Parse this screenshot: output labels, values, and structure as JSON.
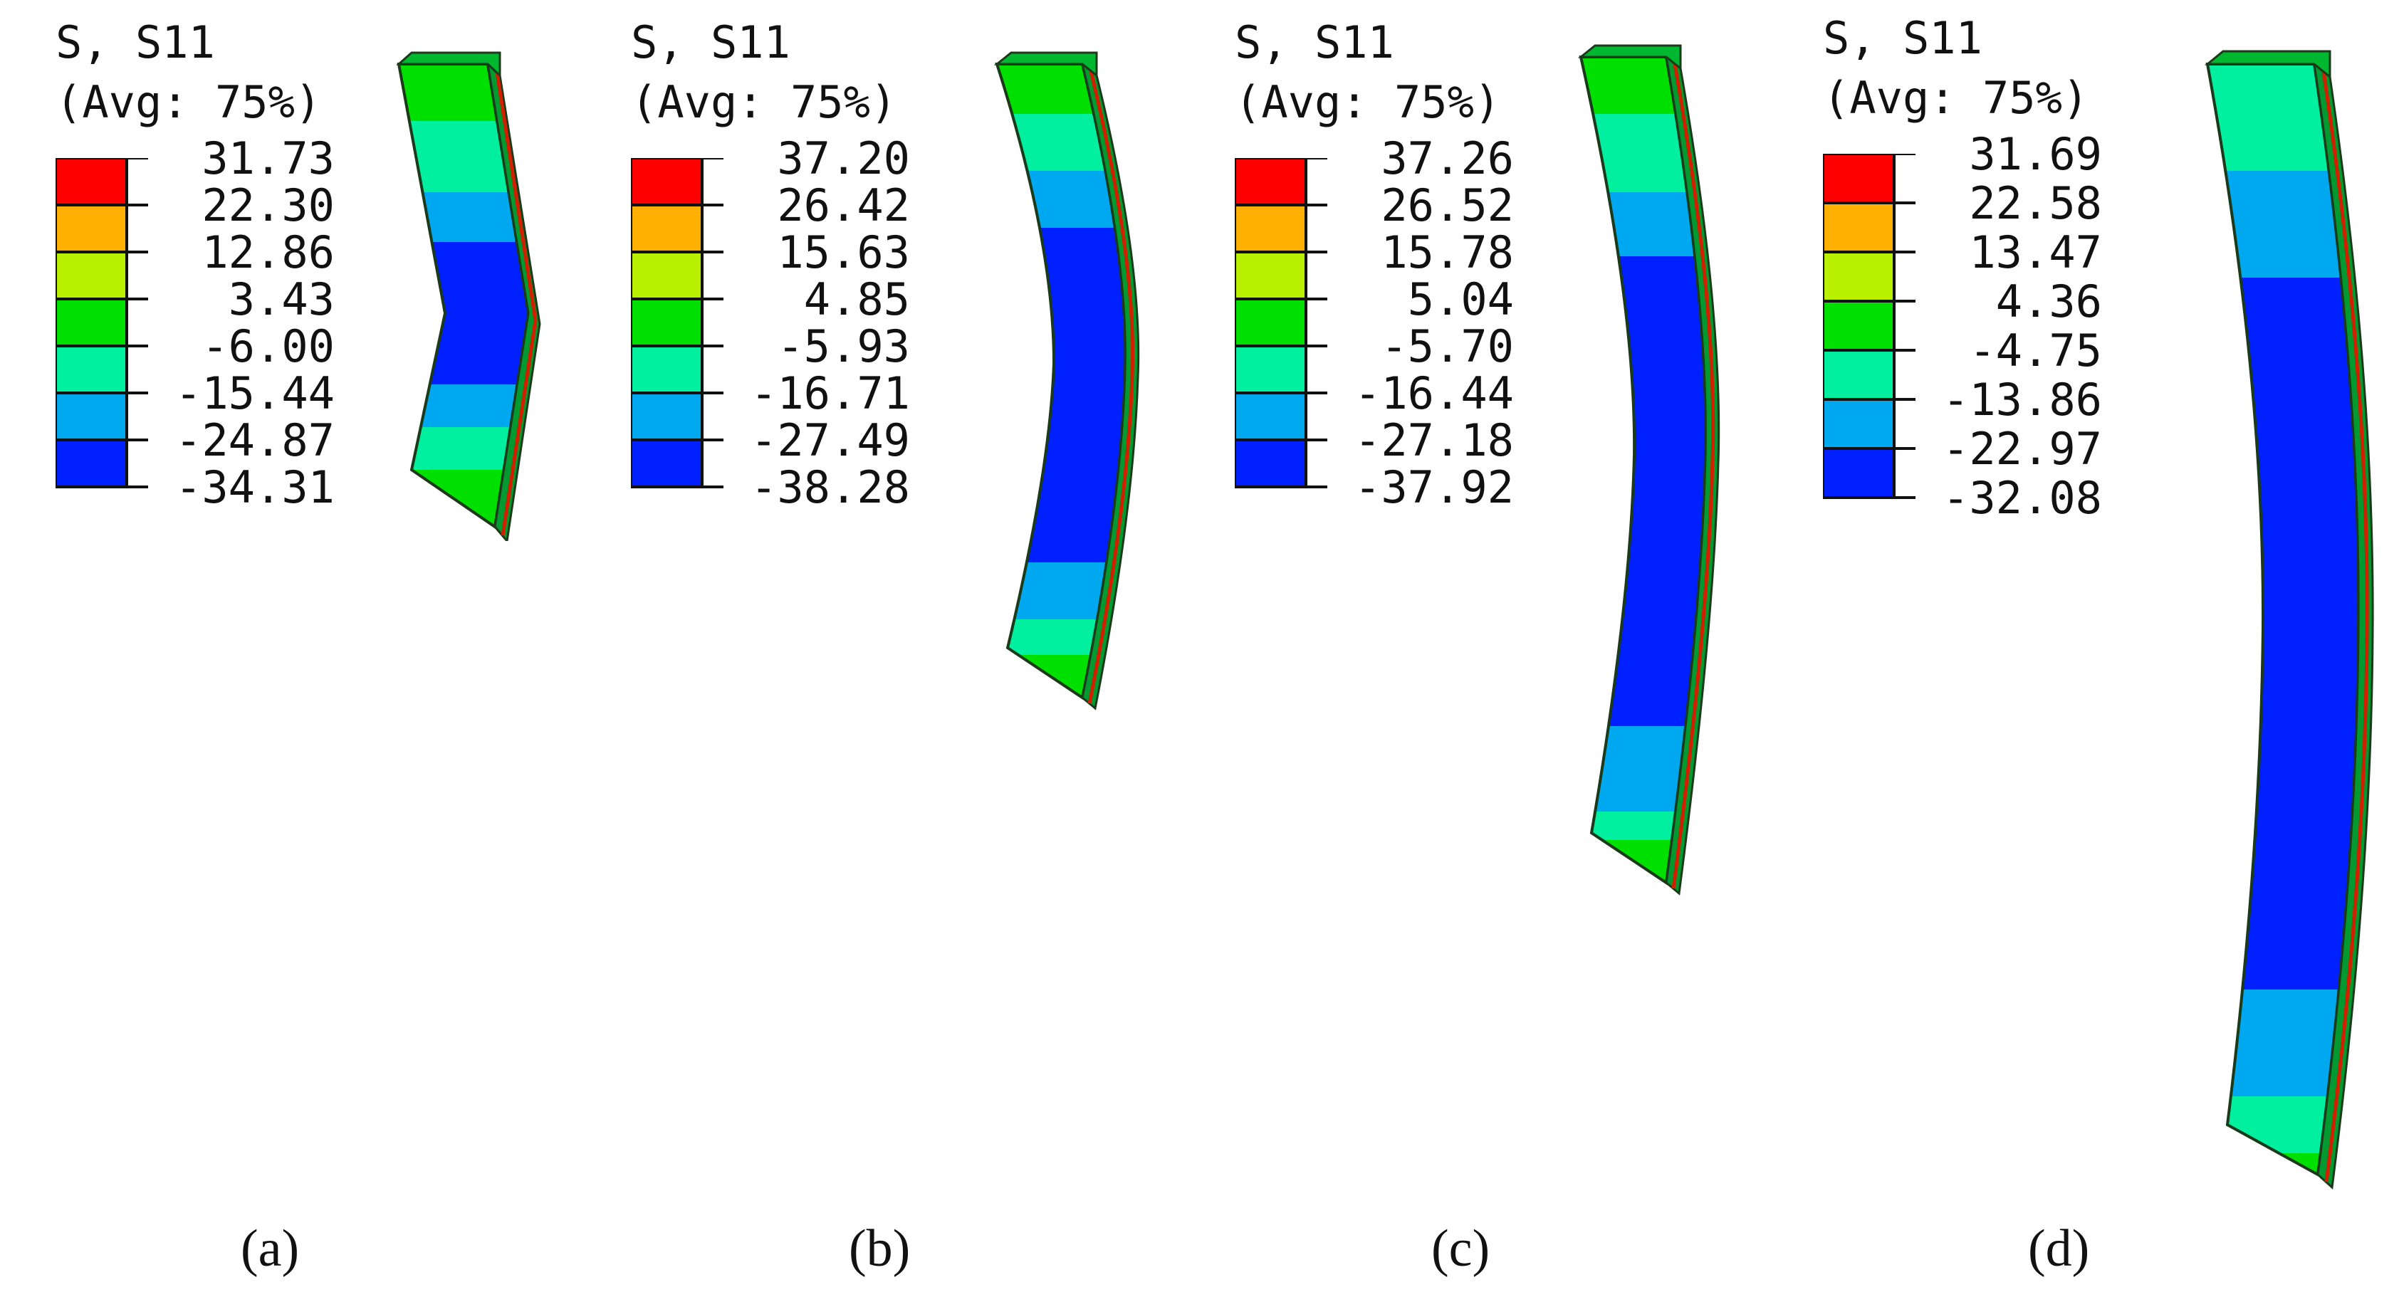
{
  "colors": {
    "red": "#ff0000",
    "orange": "#ffb000",
    "yellow_green": "#b8f000",
    "green": "#00e000",
    "cyan_green": "#00f0a0",
    "light_blue": "#00a8f0",
    "blue": "#0020ff"
  },
  "panels": [
    {
      "header1": "S, S11",
      "header2": "(Avg: 75%)",
      "legend_values": [
        "31.73",
        "22.30",
        "12.86",
        "3.43",
        "-6.00",
        "-15.44",
        "-24.87",
        "-34.31"
      ],
      "caption": "(a)"
    },
    {
      "header1": "S, S11",
      "header2": "(Avg: 75%)",
      "legend_values": [
        "37.20",
        "26.42",
        "15.63",
        "4.85",
        "-5.93",
        "-16.71",
        "-27.49",
        "-38.28"
      ],
      "caption": "(b)"
    },
    {
      "header1": "S, S11",
      "header2": "(Avg: 75%)",
      "legend_values": [
        "37.26",
        "26.52",
        "15.78",
        "5.04",
        "-5.70",
        "-16.44",
        "-27.18",
        "-37.92"
      ],
      "caption": "(c)"
    },
    {
      "header1": "S, S11",
      "header2": "(Avg: 75%)",
      "legend_values": [
        "31.69",
        "22.58",
        "13.47",
        "4.36",
        "-4.75",
        "-13.86",
        "-22.97",
        "-32.08"
      ],
      "caption": "(d)"
    }
  ]
}
